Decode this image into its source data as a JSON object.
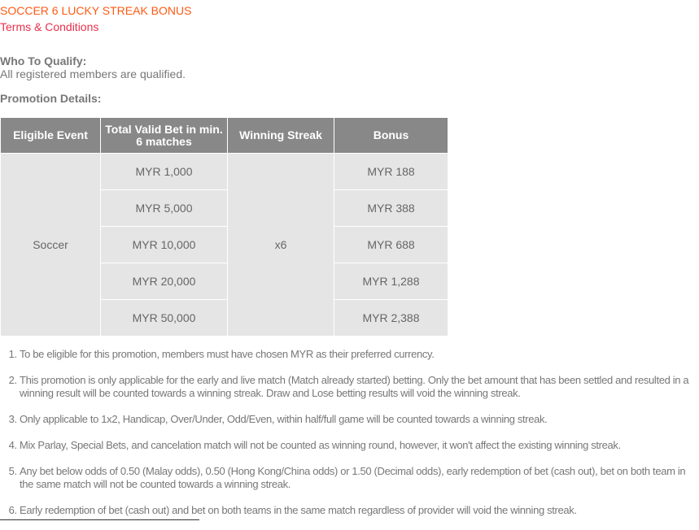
{
  "title": "SOCCER 6 LUCKY STREAK BONUS",
  "terms_link": "Terms & Conditions",
  "qualify": {
    "heading": "Who To Qualify:",
    "text": "All registered members are qualified."
  },
  "details_heading": "Promotion Details:",
  "table": {
    "headers": [
      "Eligible Event",
      "Total Valid Bet in min. 6 matches",
      "Winning Streak",
      "Bonus"
    ],
    "event": "Soccer",
    "streak": "x6",
    "rows": [
      {
        "bet": "MYR 1,000",
        "bonus": "MYR 188"
      },
      {
        "bet": "MYR 5,000",
        "bonus": "MYR 388"
      },
      {
        "bet": "MYR 10,000",
        "bonus": "MYR 688"
      },
      {
        "bet": "MYR 20,000",
        "bonus": "MYR 1,288"
      },
      {
        "bet": "MYR 50,000",
        "bonus": "MYR 2,388"
      }
    ]
  },
  "terms": [
    "To be eligible for this promotion, members must have chosen MYR as their preferred currency.",
    "This promotion is only applicable for the early and live match (Match already started) betting. Only the bet amount that has been settled and resulted in a winning result will be counted towards a winning streak. Draw and Lose betting results will void the winning streak.",
    "Only applicable to 1x2, Handicap, Over/Under, Odd/Even, within half/full game will be counted towards a winning streak.",
    "Mix Parlay, Special Bets, and cancelation match will not be counted as winning round, however, it won't affect the existing winning streak.",
    "Any bet below odds of 0.50 (Malay odds), 0.50 (Hong Kong/China odds) or 1.50 (Decimal odds), early redemption of bet (cash out), bet on both team in the same match will not be counted towards a winning streak.",
    "Early redemption of bet (cash out) and bet on both teams in the same match regardless of provider will void the winning streak."
  ],
  "colors": {
    "title": "#ff5a14",
    "link": "#e8304a",
    "header_bg": "#888888",
    "cell_bg": "#e5e5e5"
  }
}
